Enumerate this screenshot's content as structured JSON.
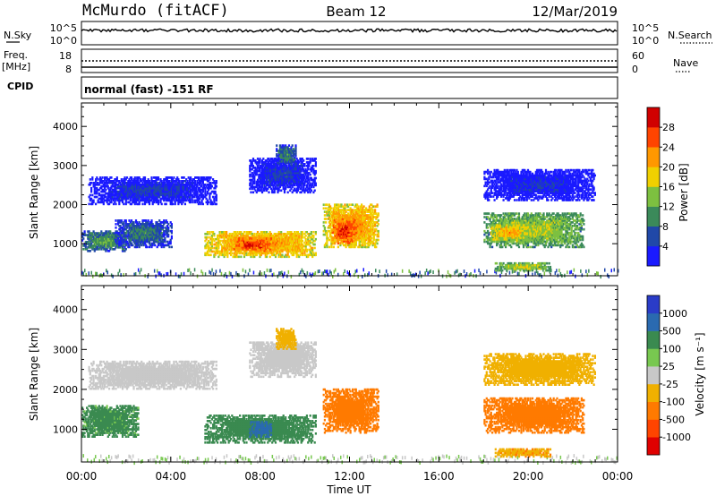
{
  "header": {
    "station": "McMurdo (fitACF)",
    "beam": "Beam 12",
    "date": "12/Mar/2019"
  },
  "noise_panel": {
    "left_label": "N.Sky",
    "right_label": "N.Search",
    "ticks_left": [
      "10^5",
      "10^0"
    ],
    "ticks_right": [
      "10^5",
      "10^0"
    ]
  },
  "freq_panel": {
    "left_label_1": "Freq.",
    "left_label_2": "[MHz]",
    "right_label": "Nave",
    "ticks_left": [
      "18",
      "8"
    ],
    "ticks_right": [
      "60",
      "0"
    ]
  },
  "cpid": {
    "label": "CPID",
    "mode": "normal (fast) -151 RF"
  },
  "time_axis": {
    "label": "Time UT",
    "ticks": [
      "00:00",
      "04:00",
      "08:00",
      "12:00",
      "16:00",
      "20:00",
      "00:00"
    ]
  },
  "chart_data": [
    {
      "type": "heatmap",
      "title": "",
      "xlabel": "Time UT",
      "ylabel": "Slant Range [km]",
      "x_range_hours": [
        0,
        24
      ],
      "ylim_km": [
        180,
        4600
      ],
      "y_ticks": [
        "1000",
        "2000",
        "3000",
        "4000"
      ],
      "colorbar": {
        "label": "Power [dB]",
        "tick_labels": [
          "4",
          "8",
          "12",
          "16",
          "20",
          "24",
          "28"
        ],
        "range": [
          0,
          32
        ],
        "colors": [
          "#1a1aff",
          "#2048a8",
          "#3b8a5a",
          "#7dc040",
          "#f0d000",
          "#ff9800",
          "#ff4400",
          "#d00000"
        ]
      },
      "echo_regions": [
        {
          "t": [
            0.0,
            2.0
          ],
          "range_km": [
            800,
            1300
          ],
          "value": 13
        },
        {
          "t": [
            1.5,
            4.0
          ],
          "range_km": [
            900,
            1600
          ],
          "value": 10
        },
        {
          "t": [
            5.5,
            10.5
          ],
          "range_km": [
            650,
            1300
          ],
          "value": 24
        },
        {
          "t": [
            6.8,
            8.5
          ],
          "range_km": [
            800,
            1150
          ],
          "value": 29
        },
        {
          "t": [
            10.8,
            13.3
          ],
          "range_km": [
            900,
            2000
          ],
          "value": 24
        },
        {
          "t": [
            11.2,
            12.3
          ],
          "range_km": [
            1000,
            1600
          ],
          "value": 29
        },
        {
          "t": [
            7.5,
            10.5
          ],
          "range_km": [
            2300,
            3200
          ],
          "value": 6
        },
        {
          "t": [
            8.7,
            9.6
          ],
          "range_km": [
            3000,
            3500
          ],
          "value": 11
        },
        {
          "t": [
            18.0,
            22.5
          ],
          "range_km": [
            900,
            1800
          ],
          "value": 17
        },
        {
          "t": [
            18.3,
            20.0
          ],
          "range_km": [
            1050,
            1500
          ],
          "value": 22
        },
        {
          "t": [
            18.5,
            21.0
          ],
          "range_km": [
            300,
            500
          ],
          "value": 18
        },
        {
          "t": [
            0.3,
            6.0
          ],
          "range_km": [
            2000,
            2700
          ],
          "value": 6
        },
        {
          "t": [
            18.0,
            23.0
          ],
          "range_km": [
            2100,
            2900
          ],
          "value": 5
        }
      ]
    },
    {
      "type": "heatmap",
      "title": "",
      "xlabel": "Time UT",
      "ylabel": "Slant Range [km]",
      "x_range_hours": [
        0,
        24
      ],
      "ylim_km": [
        180,
        4600
      ],
      "y_ticks": [
        "1000",
        "2000",
        "3000",
        "4000"
      ],
      "colorbar": {
        "label": "Velocity [m s⁻¹]",
        "tick_labels": [
          "1000",
          "500",
          "100",
          "25",
          "-25",
          "-100",
          "-500",
          "-1000"
        ],
        "colors": [
          "#2a3cc8",
          "#2a6ab0",
          "#3a8a50",
          "#78c850",
          "#c8c8c8",
          "#f0b000",
          "#ff7a00",
          "#ff4400",
          "#e00000"
        ]
      },
      "echo_regions": [
        {
          "t": [
            0.0,
            2.5
          ],
          "range_km": [
            800,
            1600
          ],
          "value": 150
        },
        {
          "t": [
            5.5,
            10.5
          ],
          "range_km": [
            650,
            1350
          ],
          "value": 200
        },
        {
          "t": [
            7.5,
            8.5
          ],
          "range_km": [
            800,
            1200
          ],
          "value": 700
        },
        {
          "t": [
            10.8,
            13.3
          ],
          "range_km": [
            900,
            2000
          ],
          "value": -300
        },
        {
          "t": [
            18.0,
            22.5
          ],
          "range_km": [
            900,
            1800
          ],
          "value": -350
        },
        {
          "t": [
            18.5,
            21.0
          ],
          "range_km": [
            300,
            500
          ],
          "value": -80
        },
        {
          "t": [
            7.5,
            10.5
          ],
          "range_km": [
            2300,
            3200
          ],
          "value": 0
        },
        {
          "t": [
            8.7,
            9.6
          ],
          "range_km": [
            3000,
            3500
          ],
          "value": -60
        },
        {
          "t": [
            0.3,
            6.0
          ],
          "range_km": [
            2000,
            2700
          ],
          "value": 0
        },
        {
          "t": [
            18.0,
            23.0
          ],
          "range_km": [
            2100,
            2900
          ],
          "value": -60
        }
      ]
    }
  ]
}
